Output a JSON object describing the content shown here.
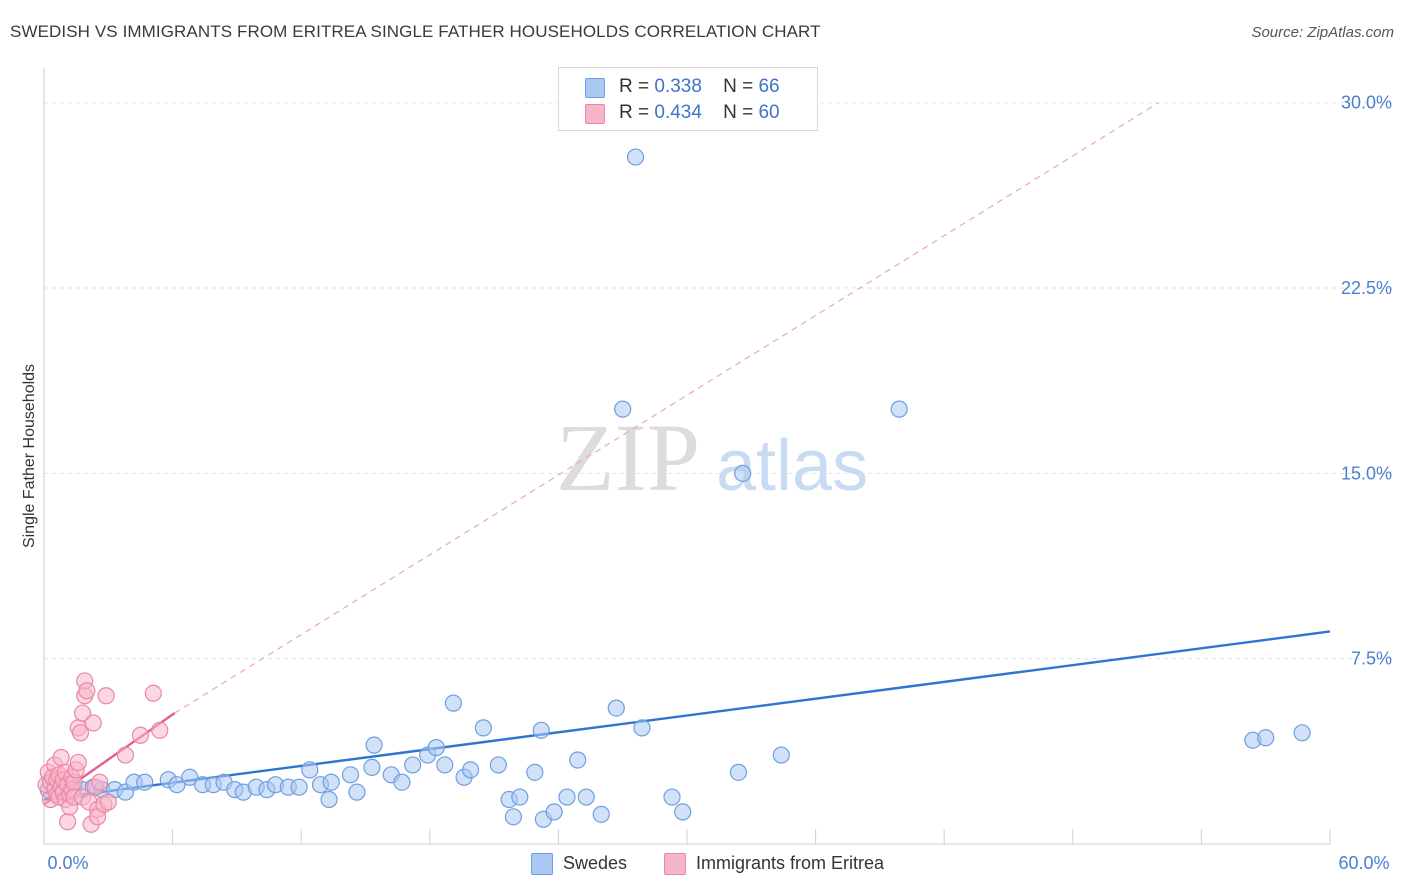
{
  "title": "SWEDISH VS IMMIGRANTS FROM ERITREA SINGLE FATHER HOUSEHOLDS CORRELATION CHART",
  "source": "Source: ZipAtlas.com",
  "watermark": {
    "zip": "ZIP",
    "atlas": "atlas"
  },
  "legend": {
    "rows": [
      {
        "r_label": "R =",
        "r_value": "0.338",
        "n_label": "N =",
        "n_value": "66",
        "color": "#a9c8f2"
      },
      {
        "r_label": "R =",
        "r_value": "0.434",
        "n_label": "N =",
        "n_value": "60",
        "color": "#f7b6c8"
      }
    ]
  },
  "bottom_legend": [
    {
      "label": "Swedes",
      "color": "#a9c8f2"
    },
    {
      "label": "Immigrants from Eritrea",
      "color": "#f7b6c8"
    }
  ],
  "chart_data": {
    "type": "scatter",
    "ylabel": "Single Father Households",
    "xlabel": "",
    "xlim": [
      0,
      60
    ],
    "ylim": [
      0,
      31
    ],
    "x_tick_labels": {
      "min": "0.0%",
      "max": "60.0%"
    },
    "y_ticks": [
      {
        "value": 7.5,
        "label": "7.5%"
      },
      {
        "value": 15.0,
        "label": "15.0%"
      },
      {
        "value": 22.5,
        "label": "22.5%"
      },
      {
        "value": 30.0,
        "label": "30.0%"
      }
    ],
    "colors": {
      "swedes_fill": "#a9c8f2",
      "swedes_stroke": "#6f9fe0",
      "swedes_line": "#2f74d0",
      "eritrea_fill": "#f7b6c8",
      "eritrea_stroke": "#ec86a6",
      "eritrea_line": "#e35f8a"
    },
    "series": [
      {
        "name": "Swedes",
        "trend": {
          "x0": 0,
          "y0": 1.8,
          "x1": 60,
          "y1": 8.6
        },
        "points": [
          [
            0.2,
            2.2
          ],
          [
            0.5,
            2.4
          ],
          [
            0.7,
            2.1
          ],
          [
            1.0,
            2.3
          ],
          [
            1.4,
            2.3
          ],
          [
            1.8,
            2.2
          ],
          [
            2.3,
            2.3
          ],
          [
            2.7,
            2.2
          ],
          [
            3.3,
            2.2
          ],
          [
            3.8,
            2.1
          ],
          [
            4.2,
            2.5
          ],
          [
            4.7,
            2.5
          ],
          [
            5.8,
            2.6
          ],
          [
            6.2,
            2.4
          ],
          [
            6.8,
            2.7
          ],
          [
            7.4,
            2.4
          ],
          [
            7.9,
            2.4
          ],
          [
            8.4,
            2.5
          ],
          [
            8.9,
            2.2
          ],
          [
            9.3,
            2.1
          ],
          [
            9.9,
            2.3
          ],
          [
            10.4,
            2.2
          ],
          [
            10.8,
            2.4
          ],
          [
            11.4,
            2.3
          ],
          [
            11.9,
            2.3
          ],
          [
            12.4,
            3.0
          ],
          [
            12.9,
            2.4
          ],
          [
            13.4,
            2.5
          ],
          [
            13.3,
            1.8
          ],
          [
            14.3,
            2.8
          ],
          [
            14.6,
            2.1
          ],
          [
            15.3,
            3.1
          ],
          [
            15.4,
            4.0
          ],
          [
            16.2,
            2.8
          ],
          [
            16.7,
            2.5
          ],
          [
            17.2,
            3.2
          ],
          [
            17.9,
            3.6
          ],
          [
            18.3,
            3.9
          ],
          [
            18.7,
            3.2
          ],
          [
            19.1,
            5.7
          ],
          [
            19.6,
            2.7
          ],
          [
            19.9,
            3.0
          ],
          [
            20.5,
            4.7
          ],
          [
            21.2,
            3.2
          ],
          [
            21.7,
            1.8
          ],
          [
            21.9,
            1.1
          ],
          [
            22.2,
            1.9
          ],
          [
            22.9,
            2.9
          ],
          [
            23.2,
            4.6
          ],
          [
            23.3,
            1.0
          ],
          [
            23.8,
            1.3
          ],
          [
            24.4,
            1.9
          ],
          [
            24.9,
            3.4
          ],
          [
            25.3,
            1.9
          ],
          [
            26.0,
            1.2
          ],
          [
            26.7,
            5.5
          ],
          [
            27.0,
            17.6
          ],
          [
            27.6,
            27.8
          ],
          [
            27.9,
            4.7
          ],
          [
            29.3,
            1.9
          ],
          [
            29.8,
            1.3
          ],
          [
            32.4,
            2.9
          ],
          [
            32.6,
            15.0
          ],
          [
            34.4,
            3.6
          ],
          [
            39.9,
            17.6
          ],
          [
            56.4,
            4.2
          ],
          [
            57.0,
            4.3
          ],
          [
            58.7,
            4.5
          ]
        ]
      },
      {
        "name": "Immigrants from Eritrea",
        "trend": {
          "x0": 0,
          "y0": 1.6,
          "x1": 6.1,
          "y1": 5.3
        },
        "dashed_extension": {
          "x0": 6.1,
          "y0": 5.3,
          "x1": 52.0,
          "y1": 30.0
        },
        "points": [
          [
            0.1,
            2.4
          ],
          [
            0.2,
            2.9
          ],
          [
            0.3,
            2.5
          ],
          [
            0.3,
            1.8
          ],
          [
            0.4,
            2.7
          ],
          [
            0.5,
            2.2
          ],
          [
            0.5,
            3.2
          ],
          [
            0.6,
            2.0
          ],
          [
            0.6,
            2.6
          ],
          [
            0.7,
            1.9
          ],
          [
            0.7,
            2.8
          ],
          [
            0.8,
            3.5
          ],
          [
            0.8,
            2.3
          ],
          [
            0.9,
            2.1
          ],
          [
            0.9,
            2.6
          ],
          [
            1.0,
            1.8
          ],
          [
            1.0,
            2.9
          ],
          [
            1.1,
            2.4
          ],
          [
            1.1,
            0.9
          ],
          [
            1.2,
            2.0
          ],
          [
            1.2,
            1.5
          ],
          [
            1.3,
            2.7
          ],
          [
            1.3,
            2.2
          ],
          [
            1.4,
            2.5
          ],
          [
            1.4,
            1.9
          ],
          [
            1.5,
            3.0
          ],
          [
            1.6,
            4.7
          ],
          [
            1.6,
            3.3
          ],
          [
            1.7,
            4.5
          ],
          [
            1.8,
            1.9
          ],
          [
            1.8,
            5.3
          ],
          [
            1.9,
            6.0
          ],
          [
            1.9,
            6.6
          ],
          [
            2.0,
            6.2
          ],
          [
            2.1,
            1.7
          ],
          [
            2.2,
            0.8
          ],
          [
            2.3,
            4.9
          ],
          [
            2.4,
            2.3
          ],
          [
            2.5,
            1.4
          ],
          [
            2.5,
            1.1
          ],
          [
            2.6,
            2.5
          ],
          [
            2.8,
            1.6
          ],
          [
            2.9,
            6.0
          ],
          [
            3.0,
            1.7
          ],
          [
            3.8,
            3.6
          ],
          [
            4.5,
            4.4
          ],
          [
            5.1,
            6.1
          ],
          [
            5.4,
            4.6
          ]
        ]
      }
    ]
  }
}
